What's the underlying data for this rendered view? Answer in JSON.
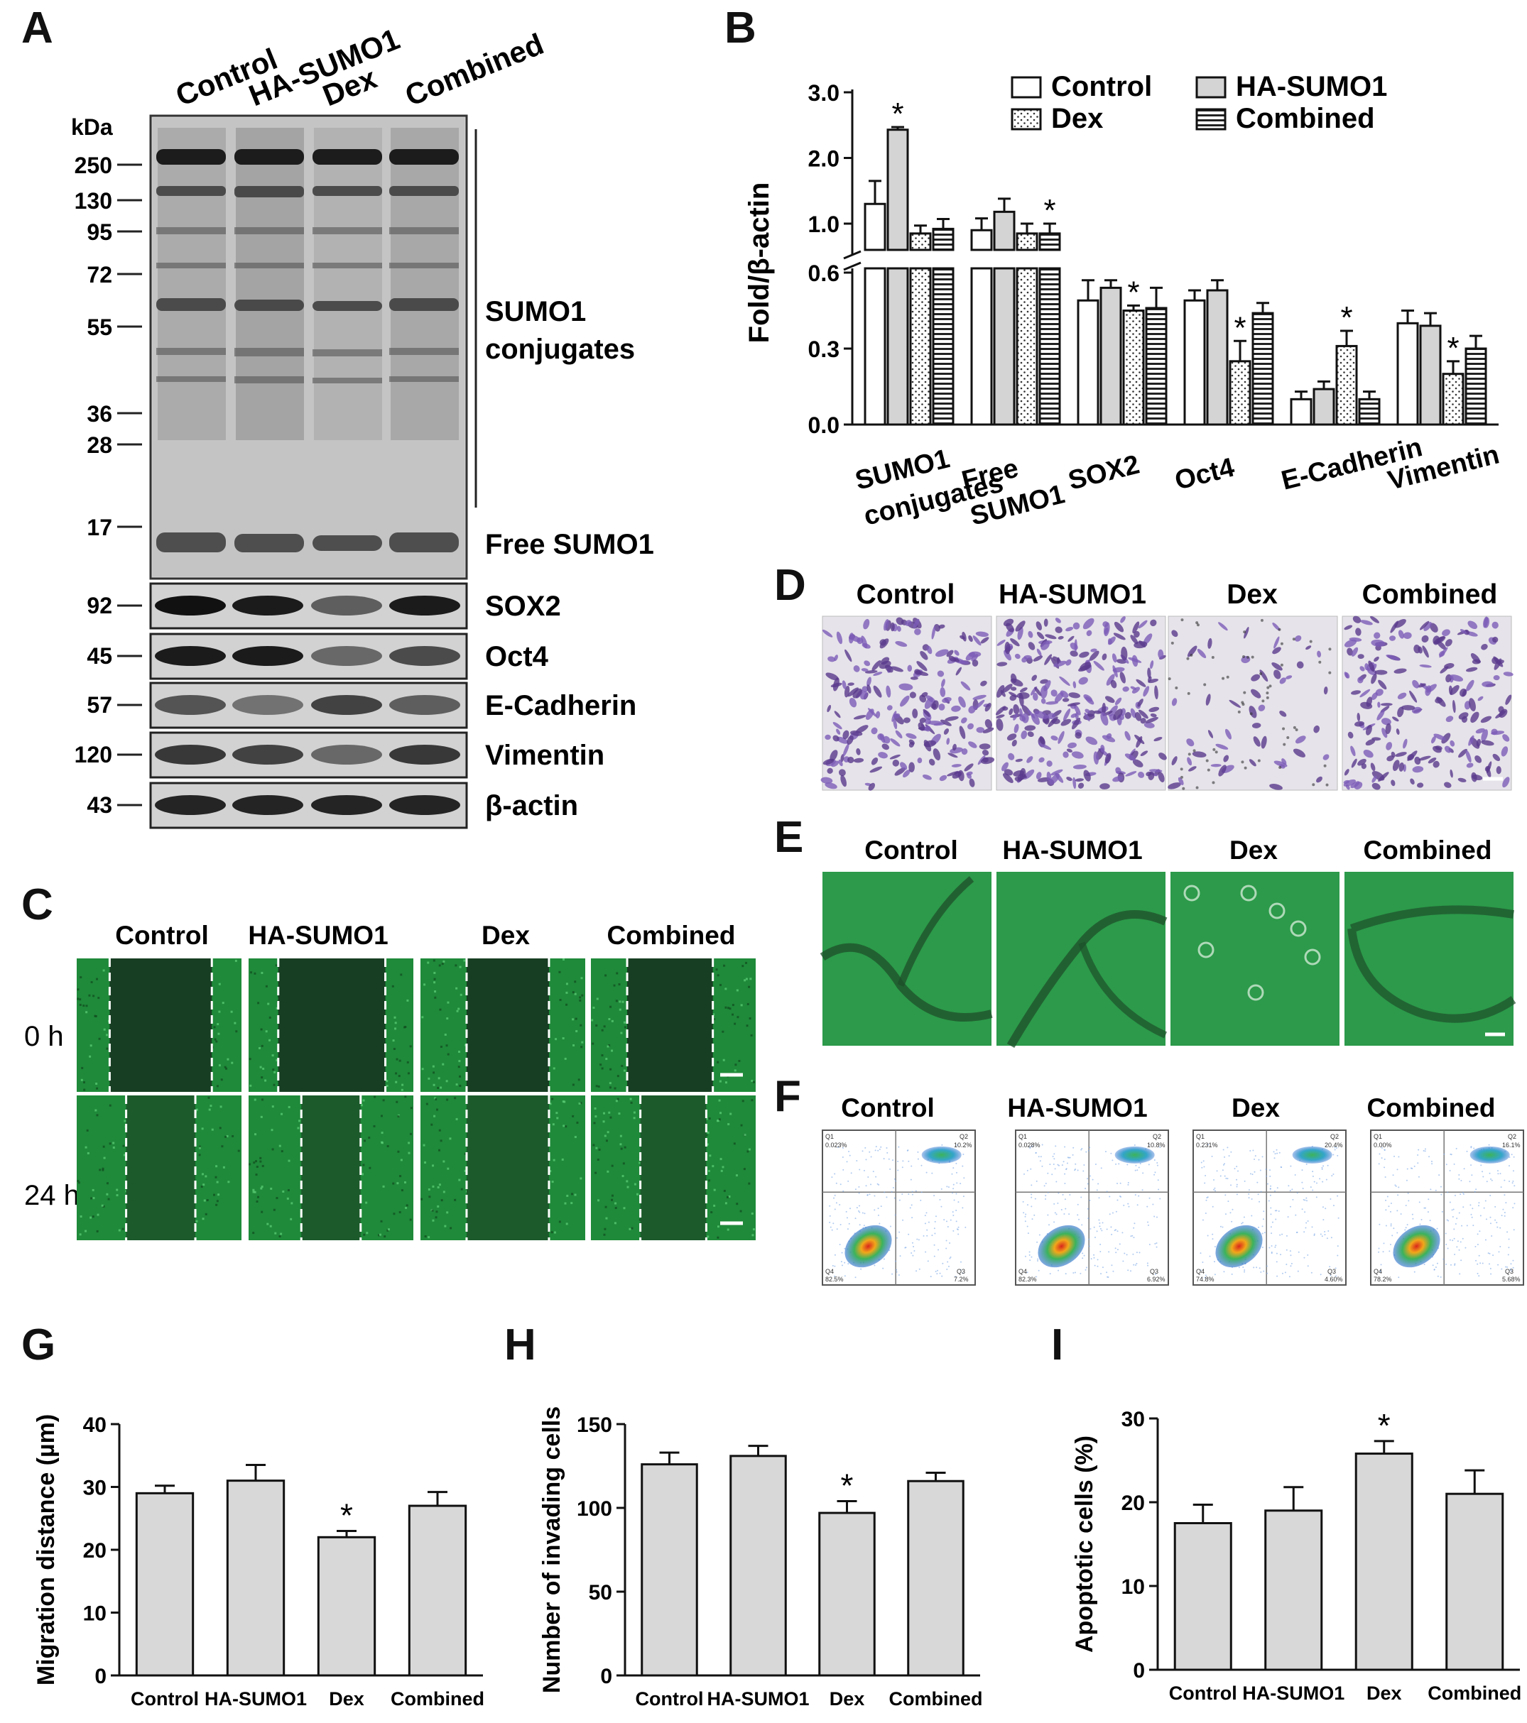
{
  "panels": {
    "A": "A",
    "B": "B",
    "C": "C",
    "D": "D",
    "E": "E",
    "F": "F",
    "G": "G",
    "H": "H",
    "I": "I"
  },
  "groups": [
    "Control",
    "HA-SUMO1",
    "Dex",
    "Combined"
  ],
  "blot": {
    "kda_label": "kDa",
    "markers": [
      "250",
      "130",
      "95",
      "72",
      "55",
      "36",
      "28",
      "17"
    ],
    "sumo_label_1": "SUMO1",
    "sumo_label_2": "conjugates",
    "free_sumo": "Free SUMO1",
    "strips": [
      {
        "kda": "92",
        "label": "SOX2"
      },
      {
        "kda": "45",
        "label": "Oct4"
      },
      {
        "kda": "57",
        "label": "E-Cadherin"
      },
      {
        "kda": "120",
        "label": "Vimentin"
      },
      {
        "kda": "43",
        "label": "β-actin"
      }
    ]
  },
  "wound": {
    "time_0": "0 h",
    "time_24": "24 h"
  },
  "flow": {
    "quadrants": [
      {
        "q1": "Q1",
        "q1v": "0.023%",
        "q2": "Q2",
        "q2v": "10.2%",
        "q3": "Q3",
        "q3v": "7.2%",
        "q4": "Q4",
        "q4v": "82.5%"
      },
      {
        "q1": "Q1",
        "q1v": "0.028%",
        "q2": "Q2",
        "q2v": "10.8%",
        "q3": "Q3",
        "q3v": "6.92%",
        "q4": "Q4",
        "q4v": "82.3%"
      },
      {
        "q1": "Q1",
        "q1v": "0.231%",
        "q2": "Q2",
        "q2v": "20.4%",
        "q3": "Q3",
        "q3v": "4.60%",
        "q4": "Q4",
        "q4v": "74.8%"
      },
      {
        "q1": "Q1",
        "q1v": "0.00%",
        "q2": "Q2",
        "q2v": "16.1%",
        "q3": "Q3",
        "q3v": "5.68%",
        "q4": "Q4",
        "q4v": "78.2%"
      }
    ]
  },
  "colors": {
    "bar_fill": "#d8d8d8",
    "purple": "#6b4a9e",
    "green": "#2f9a4a",
    "dark_green": "#173d22"
  },
  "chart_data": [
    {
      "panel": "B",
      "type": "bar",
      "ylabel": "Fold/β-actin",
      "broken_axis": true,
      "lower_ylim": [
        0,
        0.6
      ],
      "upper_ylim": [
        0.6,
        3.0
      ],
      "lower_ticks": [
        "0.0",
        "0.3",
        "0.6"
      ],
      "upper_ticks": [
        "1.0",
        "2.0",
        "3.0"
      ],
      "legend": [
        "Control",
        "HA-SUMO1",
        "Dex",
        "Combined"
      ],
      "legend_position": "top-right",
      "categories_line1": [
        "SUMO1",
        "Free",
        "SOX2",
        "Oct4",
        "E-Cadherin",
        "Vimentin"
      ],
      "categories_line2": [
        "conjugates",
        "SUMO1",
        "",
        "",
        "",
        ""
      ],
      "series": [
        {
          "name": "Control",
          "values": [
            1.3,
            0.9,
            0.49,
            0.49,
            0.1,
            0.4
          ],
          "errors": [
            0.35,
            0.18,
            0.08,
            0.04,
            0.03,
            0.05
          ]
        },
        {
          "name": "HA-SUMO1",
          "values": [
            2.43,
            1.18,
            0.54,
            0.53,
            0.14,
            0.39
          ],
          "errors": [
            0.04,
            0.2,
            0.03,
            0.04,
            0.03,
            0.05
          ]
        },
        {
          "name": "Dex",
          "values": [
            0.85,
            0.85,
            0.45,
            0.25,
            0.31,
            0.2
          ],
          "errors": [
            0.12,
            0.15,
            0.02,
            0.08,
            0.06,
            0.05
          ]
        },
        {
          "name": "Combined",
          "values": [
            0.92,
            0.85,
            0.46,
            0.44,
            0.1,
            0.3
          ],
          "errors": [
            0.15,
            0.15,
            0.08,
            0.04,
            0.03,
            0.05
          ]
        }
      ],
      "significance": [
        {
          "category": 0,
          "series": 1,
          "mark": "*"
        },
        {
          "category": 1,
          "series": 3,
          "mark": "*"
        },
        {
          "category": 2,
          "series": 2,
          "mark": "*"
        },
        {
          "category": 3,
          "series": 2,
          "mark": "*"
        },
        {
          "category": 4,
          "series": 2,
          "mark": "*"
        },
        {
          "category": 5,
          "series": 2,
          "mark": "*"
        }
      ]
    },
    {
      "panel": "G",
      "type": "bar",
      "ylabel": "Migration distance (µm)",
      "ylim": [
        0,
        40
      ],
      "yticks": [
        "0",
        "10",
        "20",
        "30",
        "40"
      ],
      "categories": [
        "Control",
        "HA-SUMO1",
        "Dex",
        "Combined"
      ],
      "values": [
        29,
        31,
        22,
        27
      ],
      "errors": [
        1.2,
        2.5,
        1.0,
        2.2
      ],
      "significance": [
        {
          "category": 2,
          "mark": "*"
        }
      ]
    },
    {
      "panel": "H",
      "type": "bar",
      "ylabel": "Number of invading cells",
      "ylim": [
        0,
        150
      ],
      "yticks": [
        "0",
        "50",
        "100",
        "150"
      ],
      "categories": [
        "Control",
        "HA-SUMO1",
        "Dex",
        "Combined"
      ],
      "values": [
        126,
        131,
        97,
        116
      ],
      "errors": [
        7,
        6,
        7,
        5
      ],
      "significance": [
        {
          "category": 2,
          "mark": "*"
        }
      ]
    },
    {
      "panel": "I",
      "type": "bar",
      "ylabel": "Apoptotic cells (%)",
      "ylim": [
        0,
        30
      ],
      "yticks": [
        "0",
        "10",
        "20",
        "30"
      ],
      "categories": [
        "Control",
        "HA-SUMO1",
        "Dex",
        "Combined"
      ],
      "values": [
        17.5,
        19,
        25.8,
        21
      ],
      "errors": [
        2.2,
        2.8,
        1.5,
        2.8
      ],
      "significance": [
        {
          "category": 2,
          "mark": "*"
        }
      ]
    }
  ]
}
